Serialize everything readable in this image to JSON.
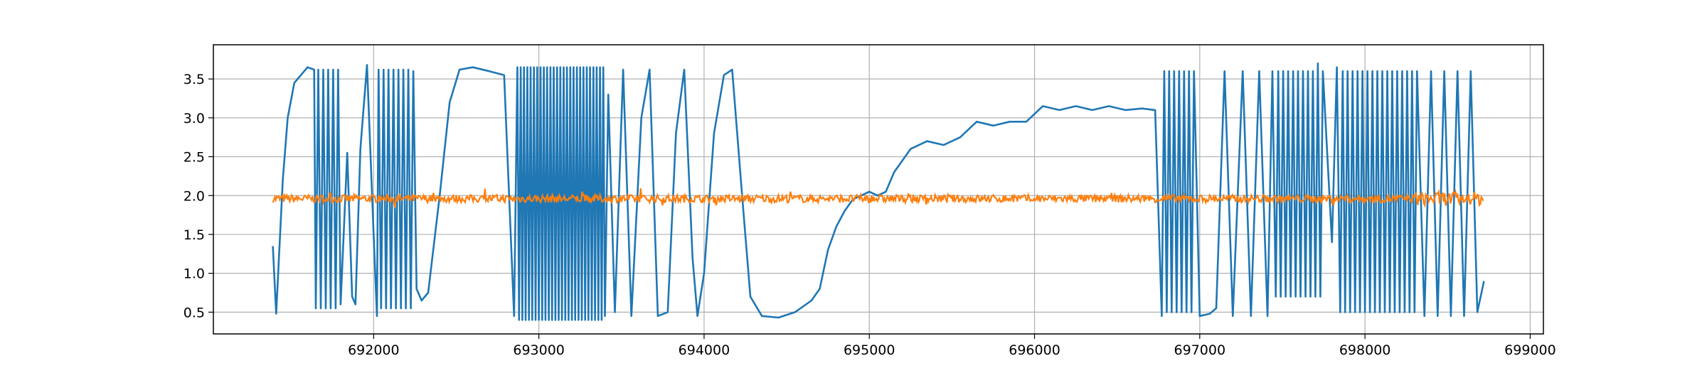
{
  "chart_data": {
    "type": "line",
    "title": "",
    "xlabel": "",
    "ylabel": "",
    "xlim": [
      691030,
      699080
    ],
    "ylim": [
      0.22,
      3.94
    ],
    "grid": true,
    "legend": "none",
    "x_ticks": [
      692000,
      693000,
      694000,
      695000,
      696000,
      697000,
      698000,
      699000
    ],
    "x_tick_labels": [
      "692000",
      "693000",
      "694000",
      "695000",
      "696000",
      "697000",
      "698000",
      "699000"
    ],
    "y_ticks": [
      0.5,
      1.0,
      1.5,
      2.0,
      2.5,
      3.0,
      3.5
    ],
    "y_tick_labels": [
      "0.5",
      "1.0",
      "1.5",
      "2.0",
      "2.5",
      "3.0",
      "3.5"
    ],
    "series": [
      {
        "color": "#1f77b4",
        "points": [
          [
            691390,
            1.35
          ],
          [
            691410,
            0.48
          ],
          [
            691450,
            2.2
          ],
          [
            691480,
            3.0
          ],
          [
            691520,
            3.45
          ],
          [
            691600,
            3.65
          ],
          [
            691640,
            3.62
          ],
          [
            691650,
            0.55
          ],
          [
            691665,
            3.62
          ],
          [
            691680,
            0.55
          ],
          [
            691695,
            3.62
          ],
          [
            691710,
            0.55
          ],
          [
            691725,
            3.62
          ],
          [
            691740,
            0.55
          ],
          [
            691755,
            3.62
          ],
          [
            691770,
            0.55
          ],
          [
            691785,
            3.62
          ],
          [
            691800,
            0.6
          ],
          [
            691840,
            2.55
          ],
          [
            691870,
            0.7
          ],
          [
            691890,
            0.6
          ],
          [
            691920,
            2.6
          ],
          [
            691960,
            3.68
          ],
          [
            692000,
            1.5
          ],
          [
            692020,
            0.45
          ],
          [
            692030,
            3.62
          ],
          [
            692045,
            0.55
          ],
          [
            692060,
            3.62
          ],
          [
            692075,
            0.55
          ],
          [
            692090,
            3.62
          ],
          [
            692105,
            0.55
          ],
          [
            692120,
            3.62
          ],
          [
            692135,
            0.55
          ],
          [
            692150,
            3.62
          ],
          [
            692165,
            0.55
          ],
          [
            692180,
            3.62
          ],
          [
            692195,
            0.55
          ],
          [
            692210,
            3.62
          ],
          [
            692225,
            0.55
          ],
          [
            692240,
            3.6
          ],
          [
            692260,
            0.8
          ],
          [
            692290,
            0.65
          ],
          [
            692330,
            0.75
          ],
          [
            692400,
            2.0
          ],
          [
            692460,
            3.2
          ],
          [
            692520,
            3.62
          ],
          [
            692600,
            3.65
          ],
          [
            692700,
            3.6
          ],
          [
            692790,
            3.55
          ],
          [
            692820,
            2.0
          ],
          [
            692850,
            0.45
          ],
          [
            692870,
            3.65
          ],
          [
            692880,
            0.4
          ],
          [
            692890,
            3.65
          ],
          [
            692900,
            0.4
          ],
          [
            692910,
            3.65
          ],
          [
            692920,
            0.4
          ],
          [
            692930,
            3.65
          ],
          [
            692940,
            0.4
          ],
          [
            692950,
            3.65
          ],
          [
            692960,
            0.4
          ],
          [
            692970,
            3.65
          ],
          [
            692980,
            0.4
          ],
          [
            692990,
            3.65
          ],
          [
            693000,
            0.4
          ],
          [
            693010,
            3.65
          ],
          [
            693020,
            0.4
          ],
          [
            693030,
            3.65
          ],
          [
            693040,
            0.4
          ],
          [
            693050,
            3.65
          ],
          [
            693060,
            0.4
          ],
          [
            693070,
            3.65
          ],
          [
            693080,
            0.4
          ],
          [
            693090,
            3.65
          ],
          [
            693100,
            0.4
          ],
          [
            693110,
            3.65
          ],
          [
            693120,
            0.4
          ],
          [
            693130,
            3.65
          ],
          [
            693140,
            0.4
          ],
          [
            693150,
            3.65
          ],
          [
            693160,
            0.4
          ],
          [
            693170,
            3.65
          ],
          [
            693180,
            0.4
          ],
          [
            693190,
            3.65
          ],
          [
            693200,
            0.4
          ],
          [
            693210,
            3.65
          ],
          [
            693220,
            0.4
          ],
          [
            693230,
            3.65
          ],
          [
            693240,
            0.4
          ],
          [
            693250,
            3.65
          ],
          [
            693260,
            0.4
          ],
          [
            693270,
            3.65
          ],
          [
            693280,
            0.4
          ],
          [
            693290,
            3.65
          ],
          [
            693300,
            0.4
          ],
          [
            693310,
            3.65
          ],
          [
            693320,
            0.4
          ],
          [
            693330,
            3.65
          ],
          [
            693340,
            0.4
          ],
          [
            693350,
            3.65
          ],
          [
            693360,
            0.4
          ],
          [
            693370,
            3.65
          ],
          [
            693380,
            0.4
          ],
          [
            693390,
            3.65
          ],
          [
            693400,
            0.45
          ],
          [
            693420,
            3.3
          ],
          [
            693460,
            0.5
          ],
          [
            693510,
            3.62
          ],
          [
            693560,
            0.45
          ],
          [
            693620,
            3.0
          ],
          [
            693670,
            3.62
          ],
          [
            693720,
            0.45
          ],
          [
            693780,
            0.5
          ],
          [
            693830,
            2.8
          ],
          [
            693880,
            3.62
          ],
          [
            693930,
            1.2
          ],
          [
            693960,
            0.45
          ],
          [
            694000,
            1.0
          ],
          [
            694060,
            2.8
          ],
          [
            694120,
            3.55
          ],
          [
            694170,
            3.62
          ],
          [
            694230,
            2.0
          ],
          [
            694280,
            0.7
          ],
          [
            694350,
            0.45
          ],
          [
            694450,
            0.43
          ],
          [
            694550,
            0.5
          ],
          [
            694650,
            0.65
          ],
          [
            694700,
            0.8
          ],
          [
            694750,
            1.3
          ],
          [
            694800,
            1.6
          ],
          [
            694850,
            1.8
          ],
          [
            694900,
            1.95
          ],
          [
            694950,
            2.0
          ],
          [
            695000,
            2.05
          ],
          [
            695050,
            2.0
          ],
          [
            695100,
            2.05
          ],
          [
            695150,
            2.3
          ],
          [
            695250,
            2.6
          ],
          [
            695350,
            2.7
          ],
          [
            695450,
            2.65
          ],
          [
            695550,
            2.75
          ],
          [
            695650,
            2.95
          ],
          [
            695750,
            2.9
          ],
          [
            695850,
            2.95
          ],
          [
            695950,
            2.95
          ],
          [
            696050,
            3.15
          ],
          [
            696150,
            3.1
          ],
          [
            696250,
            3.15
          ],
          [
            696350,
            3.1
          ],
          [
            696450,
            3.15
          ],
          [
            696550,
            3.1
          ],
          [
            696650,
            3.12
          ],
          [
            696730,
            3.1
          ],
          [
            696750,
            1.8
          ],
          [
            696770,
            0.45
          ],
          [
            696785,
            3.6
          ],
          [
            696800,
            0.5
          ],
          [
            696815,
            3.6
          ],
          [
            696830,
            0.5
          ],
          [
            696845,
            3.6
          ],
          [
            696860,
            0.5
          ],
          [
            696875,
            3.6
          ],
          [
            696890,
            0.5
          ],
          [
            696905,
            3.6
          ],
          [
            696920,
            0.5
          ],
          [
            696935,
            3.6
          ],
          [
            696950,
            0.5
          ],
          [
            696965,
            3.6
          ],
          [
            697000,
            0.45
          ],
          [
            697060,
            0.48
          ],
          [
            697100,
            0.55
          ],
          [
            697150,
            3.6
          ],
          [
            697200,
            0.45
          ],
          [
            697260,
            3.6
          ],
          [
            697310,
            0.45
          ],
          [
            697360,
            3.6
          ],
          [
            697410,
            0.45
          ],
          [
            697440,
            3.6
          ],
          [
            697460,
            0.7
          ],
          [
            697475,
            3.6
          ],
          [
            697490,
            0.7
          ],
          [
            697505,
            3.6
          ],
          [
            697520,
            0.7
          ],
          [
            697535,
            3.6
          ],
          [
            697550,
            0.7
          ],
          [
            697565,
            3.6
          ],
          [
            697580,
            0.7
          ],
          [
            697595,
            3.6
          ],
          [
            697610,
            0.7
          ],
          [
            697625,
            3.6
          ],
          [
            697640,
            0.7
          ],
          [
            697655,
            3.6
          ],
          [
            697670,
            0.7
          ],
          [
            697685,
            3.6
          ],
          [
            697700,
            0.7
          ],
          [
            697715,
            3.7
          ],
          [
            697730,
            0.7
          ],
          [
            697745,
            3.6
          ],
          [
            697800,
            1.4
          ],
          [
            697830,
            3.65
          ],
          [
            697850,
            0.5
          ],
          [
            697865,
            3.6
          ],
          [
            697880,
            0.5
          ],
          [
            697895,
            3.6
          ],
          [
            697910,
            0.5
          ],
          [
            697925,
            3.6
          ],
          [
            697940,
            0.5
          ],
          [
            697955,
            3.6
          ],
          [
            697970,
            0.5
          ],
          [
            697985,
            3.6
          ],
          [
            698000,
            0.5
          ],
          [
            698015,
            3.6
          ],
          [
            698030,
            0.5
          ],
          [
            698045,
            3.6
          ],
          [
            698060,
            0.5
          ],
          [
            698075,
            3.6
          ],
          [
            698090,
            0.5
          ],
          [
            698105,
            3.6
          ],
          [
            698120,
            0.5
          ],
          [
            698135,
            3.6
          ],
          [
            698150,
            0.5
          ],
          [
            698165,
            3.6
          ],
          [
            698180,
            0.5
          ],
          [
            698195,
            3.6
          ],
          [
            698210,
            0.5
          ],
          [
            698225,
            3.6
          ],
          [
            698240,
            0.5
          ],
          [
            698255,
            3.6
          ],
          [
            698270,
            0.5
          ],
          [
            698285,
            3.6
          ],
          [
            698300,
            0.5
          ],
          [
            698315,
            3.6
          ],
          [
            698360,
            0.45
          ],
          [
            698400,
            3.6
          ],
          [
            698440,
            0.45
          ],
          [
            698480,
            3.6
          ],
          [
            698520,
            0.45
          ],
          [
            698560,
            3.6
          ],
          [
            698600,
            0.45
          ],
          [
            698640,
            3.6
          ],
          [
            698680,
            0.5
          ],
          [
            698720,
            0.9
          ]
        ]
      },
      {
        "color": "#ff7f0e",
        "band_x": [
          691390,
          698720
        ],
        "band_center": 1.96,
        "band_halfwidth": 0.05
      }
    ]
  }
}
